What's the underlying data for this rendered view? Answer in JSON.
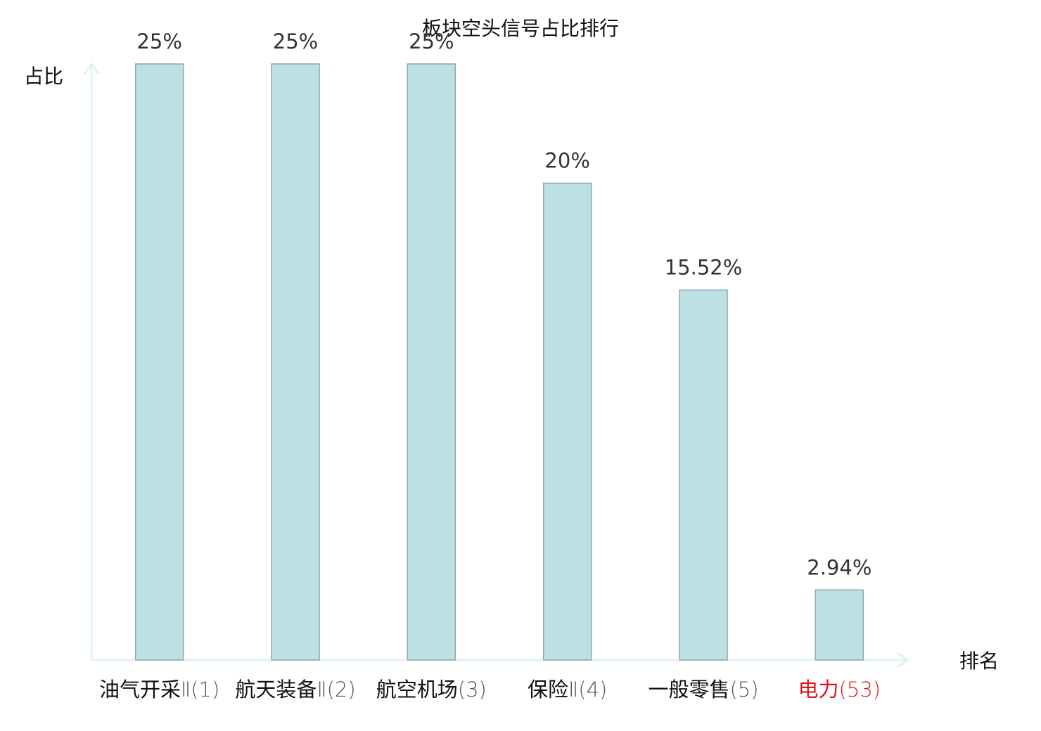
{
  "chart_data": {
    "type": "bar",
    "title": "板块空头信号占比排行",
    "y_label": "占比",
    "x_label": "排名",
    "categories": [
      "油气开采",
      "航天装备",
      "航空机场",
      "保险",
      "一般零售",
      "电力"
    ],
    "rank_labels": [
      "Ⅱ(1)",
      "Ⅱ(2)",
      "(3)",
      "Ⅱ(4)",
      "(5)",
      "(53)"
    ],
    "category_colors": [
      "#111111",
      "#111111",
      "#111111",
      "#111111",
      "#111111",
      "#e0141e"
    ],
    "rank_colors": [
      "#555555",
      "#555555",
      "#555555",
      "#555555",
      "#555555",
      "#e0141e"
    ],
    "values": [
      25,
      25,
      25,
      20,
      15.52,
      2.94
    ],
    "value_labels": [
      "25%",
      "25%",
      "25%",
      "20%",
      "15.52%",
      "2.94%"
    ],
    "color": "#bce0e3",
    "edge_color": "#8fa9ab",
    "axis_color": "#dff3f0",
    "ylim": [
      0,
      25
    ]
  }
}
